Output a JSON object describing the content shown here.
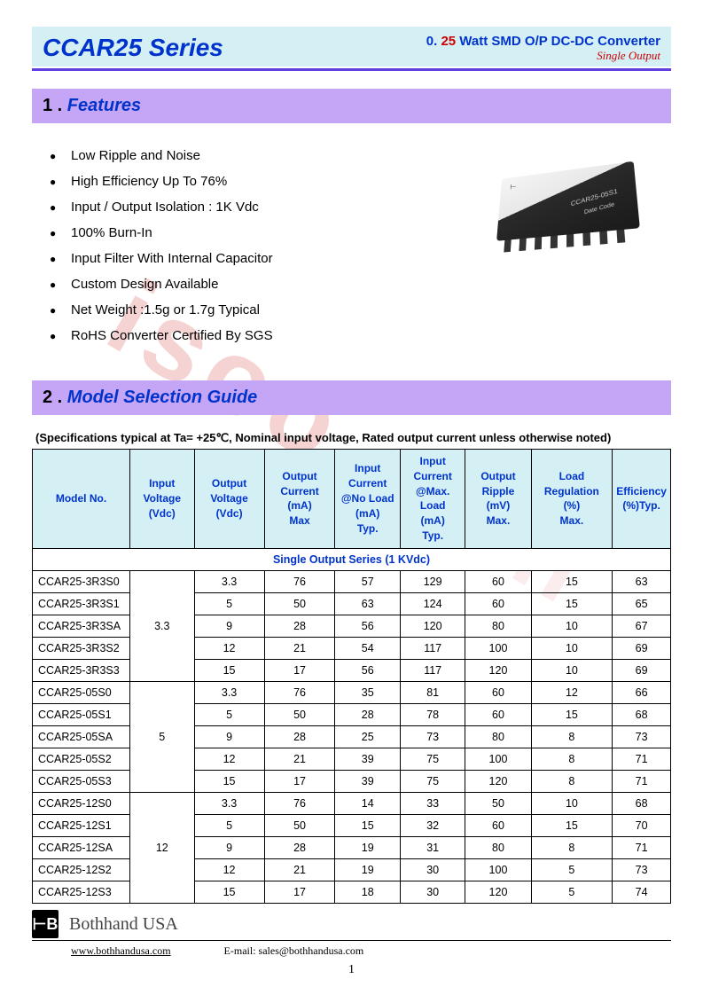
{
  "header": {
    "series_title": "CCAR25 Series",
    "sub_prefix": "0.",
    "sub_num": "25",
    "sub_rest": " Watt SMD O/P DC-DC Converter",
    "output_type": "Single  Output"
  },
  "watermark1": "isoo.com",
  "watermark2": "Only",
  "section1": {
    "num": "1 .",
    "title": " Features"
  },
  "features": [
    "Low Ripple and Noise",
    "High Efficiency Up To 76%",
    "Input / Output Isolation : 1K Vdc",
    "100% Burn-In",
    "Input Filter With Internal Capacitor",
    "Custom Design Available",
    "Net Weight :1.5g or 1.7g Typical",
    "RoHS Converter Certified By SGS"
  ],
  "chip": {
    "label1": "CCAR25-05S1",
    "label2": "Date Code"
  },
  "section2": {
    "num": "2 .",
    "title": " Model Selection Guide"
  },
  "spec_note": "(Specifications typical at Ta= +25℃, Nominal input voltage, Rated output current unless otherwise noted)",
  "table": {
    "headers": [
      "Model No.",
      "Input Voltage (Vdc)",
      "Output Voltage (Vdc)",
      "Output Current (mA) Max",
      "Input Current @No Load (mA) Typ.",
      "Input Current @Max. Load (mA) Typ.",
      "Output Ripple (mV) Max.",
      "Load Regulation (%) Max.",
      "Efficiency (%)Typ."
    ],
    "subhead": "Single Output Series (1 KVdc)",
    "groups": [
      {
        "vin": "3.3",
        "rows": [
          [
            "CCAR25-3R3S0",
            "3.3",
            "76",
            "57",
            "129",
            "60",
            "15",
            "63"
          ],
          [
            "CCAR25-3R3S1",
            "5",
            "50",
            "63",
            "124",
            "60",
            "15",
            "65"
          ],
          [
            "CCAR25-3R3SA",
            "9",
            "28",
            "56",
            "120",
            "80",
            "10",
            "67"
          ],
          [
            "CCAR25-3R3S2",
            "12",
            "21",
            "54",
            "117",
            "100",
            "10",
            "69"
          ],
          [
            "CCAR25-3R3S3",
            "15",
            "17",
            "56",
            "117",
            "120",
            "10",
            "69"
          ]
        ]
      },
      {
        "vin": "5",
        "rows": [
          [
            "CCAR25-05S0",
            "3.3",
            "76",
            "35",
            "81",
            "60",
            "12",
            "66"
          ],
          [
            "CCAR25-05S1",
            "5",
            "50",
            "28",
            "78",
            "60",
            "15",
            "68"
          ],
          [
            "CCAR25-05SA",
            "9",
            "28",
            "25",
            "73",
            "80",
            "8",
            "73"
          ],
          [
            "CCAR25-05S2",
            "12",
            "21",
            "39",
            "75",
            "100",
            "8",
            "71"
          ],
          [
            "CCAR25-05S3",
            "15",
            "17",
            "39",
            "75",
            "120",
            "8",
            "71"
          ]
        ]
      },
      {
        "vin": "12",
        "rows": [
          [
            "CCAR25-12S0",
            "3.3",
            "76",
            "14",
            "33",
            "50",
            "10",
            "68"
          ],
          [
            "CCAR25-12S1",
            "5",
            "50",
            "15",
            "32",
            "60",
            "15",
            "70"
          ],
          [
            "CCAR25-12SA",
            "9",
            "28",
            "19",
            "31",
            "80",
            "8",
            "71"
          ],
          [
            "CCAR25-12S2",
            "12",
            "21",
            "19",
            "30",
            "100",
            "5",
            "73"
          ],
          [
            "CCAR25-12S3",
            "15",
            "17",
            "18",
            "30",
            "120",
            "5",
            "74"
          ]
        ]
      }
    ]
  },
  "footer": {
    "logo": "⊢B",
    "company": "Bothhand USA",
    "url": "www.bothhandusa.com",
    "email_label": "E-mail: ",
    "email": "sales@bothhandusa.com",
    "page": "1"
  },
  "colors": {
    "header_bg": "#d4f0f5",
    "section_bg": "#c5a5f5",
    "accent_blue": "#0033cc",
    "accent_red": "#cc0000",
    "rule": "#6040e0"
  }
}
